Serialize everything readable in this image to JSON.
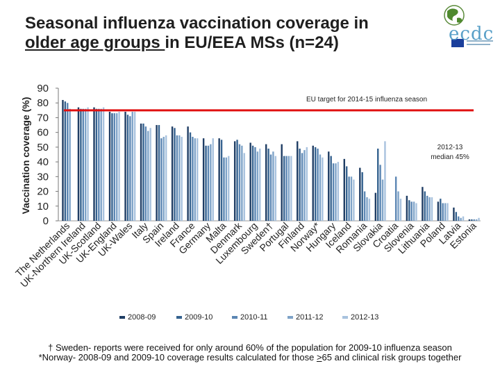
{
  "title": {
    "line1": "Seasonal influenza vaccination coverage in",
    "line2_underlined": "older age groups ",
    "line2_rest": "in EU/EEA MSs (n=24)"
  },
  "logo": {
    "text": "ecdc",
    "icon": "ecdc-globe-logo",
    "flag_icon": "eu-flag-icon"
  },
  "footnote": {
    "line1": "† Sweden- reports were received for only around 60% of the population for 2009-10 influenza season",
    "line2_pre": "*Norway- 2008-09 and 2009-10 coverage results calculated for those ",
    "line2_underlined": ">",
    "line2_post": "65 and clinical risk groups together"
  },
  "colors": {
    "series": [
      "#1f3d64",
      "#35628f",
      "#5b86b3",
      "#7ea3c8",
      "#a8c2de"
    ],
    "target_line": "#e01010"
  },
  "chart_data": {
    "type": "bar",
    "ylabel": "Vaccination coverage (%)",
    "ylim": [
      0,
      90
    ],
    "yticks": [
      0,
      10,
      20,
      30,
      40,
      50,
      60,
      70,
      80,
      90
    ],
    "grid": false,
    "legend": "bottom",
    "categories": [
      "The Netherlands",
      "UK-Northern Ireland",
      "UK-Scotland",
      "UK-England",
      "UK-Wales",
      "Italy",
      "Spain",
      "Ireland",
      "France",
      "Germany",
      "Malta",
      "Denmark",
      "Luxembourg",
      "Sweden†",
      "Portugal",
      "Finland",
      "Norway*",
      "Hungary",
      "Iceland",
      "Romania",
      "Slovakia",
      "Croatia",
      "Slovenia",
      "Lithuania",
      "Poland",
      "Latvia",
      "Estonia"
    ],
    "series": [
      {
        "name": "2008-09",
        "values": [
          82,
          77,
          77,
          74,
          74,
          66,
          65,
          64,
          64,
          56,
          56,
          54,
          53,
          52,
          52,
          54,
          51,
          47,
          42,
          36,
          19,
          null,
          17,
          23,
          13,
          9,
          1
        ]
      },
      {
        "name": "2009-10",
        "values": [
          81,
          76,
          76,
          73,
          72,
          66,
          65,
          63,
          60,
          51,
          55,
          55,
          51,
          49,
          44,
          49,
          50,
          44,
          37,
          33,
          49,
          null,
          14,
          20,
          15,
          6,
          1
        ]
      },
      {
        "name": "2010-11",
        "values": [
          80,
          76,
          76,
          73,
          71,
          64,
          56,
          58,
          57,
          51,
          43,
          52,
          50,
          45,
          44,
          46,
          49,
          39,
          30,
          20,
          38,
          30,
          13,
          17,
          12,
          3,
          1
        ]
      },
      {
        "name": "2011-12",
        "values": [
          76,
          76,
          76,
          73,
          74,
          61,
          57,
          58,
          56,
          52,
          43,
          51,
          47,
          47,
          44,
          48,
          45,
          39,
          30,
          16,
          28,
          20,
          13,
          16,
          12,
          2,
          1
        ]
      },
      {
        "name": "2012-13",
        "values": [
          null,
          77,
          77,
          74,
          74,
          63,
          58,
          57,
          56,
          56,
          44,
          46,
          49,
          44,
          44,
          50,
          43,
          40,
          28,
          15,
          54,
          15,
          12,
          16,
          12,
          3,
          2
        ]
      }
    ],
    "reference_lines": [
      {
        "y": 75,
        "label": "EU target for 2014-15 influenza season"
      }
    ],
    "annotations": [
      {
        "text_line1": "2012-13",
        "text_line2": "median 45%"
      }
    ]
  }
}
